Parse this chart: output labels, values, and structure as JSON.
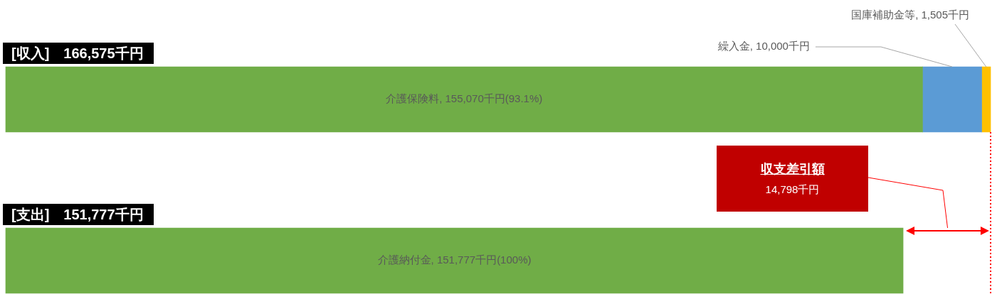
{
  "chart_data": {
    "type": "bar",
    "orientation": "horizontal",
    "stacked": true,
    "categories": [
      "[収入]　166,575千円",
      "[支出]　151,777千円"
    ],
    "xlim": [
      0,
      166575
    ],
    "tick_labels": false,
    "legend": false,
    "series": [
      {
        "color": "#70ad47",
        "values": [
          155070,
          null
        ],
        "value_labels": [
          "介護保険料, 155,070千円(93.1%)",
          null
        ]
      },
      {
        "color": "#5b9bd5",
        "values": [
          10000,
          null
        ],
        "value_labels": [
          "繰入金, 10,000千円",
          null
        ]
      },
      {
        "color": "#ffc000",
        "values": [
          1505,
          null
        ],
        "value_labels": [
          "国庫補助金等, 1,505千円",
          null
        ]
      },
      {
        "color": "#70ad47",
        "values": [
          null,
          151777
        ],
        "value_labels": [
          null,
          "介護納付金, 151,777千円(100%)"
        ]
      }
    ],
    "ref_lines": [
      {
        "axis": "x",
        "value": 166575,
        "color": "#ff0000",
        "line_style": "dotted"
      }
    ],
    "annotations": [
      "収支差引額",
      "14,798千円"
    ]
  }
}
